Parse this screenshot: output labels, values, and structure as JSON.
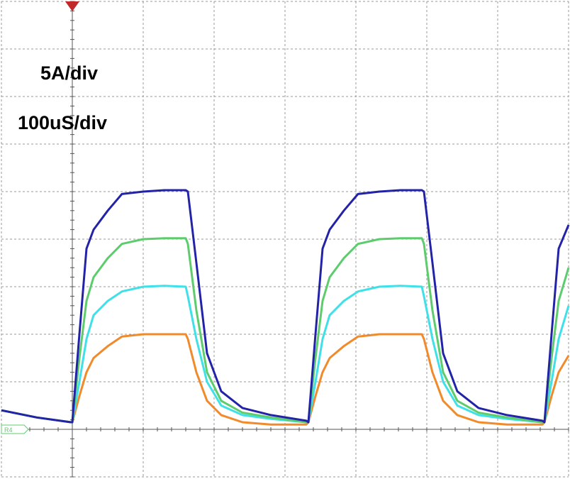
{
  "chart_data": {
    "type": "line",
    "annotations": [
      "5A/div",
      "100uS/div"
    ],
    "ground_label": "R4",
    "xlim": [
      0,
      8
    ],
    "ylim": [
      -1,
      9
    ],
    "grid": true,
    "x": [
      0,
      0.5,
      0.98,
      1.0,
      1.1,
      1.2,
      1.3,
      1.5,
      1.7,
      2.0,
      2.3,
      2.6,
      2.63,
      2.75,
      2.9,
      3.1,
      3.4,
      3.8,
      4.3,
      4.33,
      4.43,
      4.53,
      4.63,
      4.83,
      5.03,
      5.33,
      5.63,
      5.93,
      5.96,
      6.08,
      6.23,
      6.43,
      6.73,
      7.13,
      7.63,
      7.66,
      7.76,
      7.86,
      8.0
    ],
    "series": [
      {
        "color": "#f08a2a",
        "values": [
          0.4,
          0.25,
          0.15,
          0.15,
          0.7,
          1.2,
          1.5,
          1.75,
          1.95,
          2.0,
          2.0,
          2.0,
          1.9,
          1.2,
          0.6,
          0.3,
          0.15,
          0.1,
          0.1,
          0.15,
          0.7,
          1.2,
          1.5,
          1.75,
          1.95,
          2.0,
          2.0,
          2.0,
          1.9,
          1.2,
          0.6,
          0.3,
          0.15,
          0.1,
          0.1,
          0.15,
          0.7,
          1.2,
          1.55
        ]
      },
      {
        "color": "#3fe0e8",
        "values": [
          0.4,
          0.25,
          0.15,
          0.15,
          1.0,
          1.9,
          2.4,
          2.7,
          2.9,
          3.0,
          3.02,
          3.0,
          2.8,
          1.9,
          1.0,
          0.5,
          0.3,
          0.22,
          0.15,
          0.15,
          1.0,
          1.9,
          2.4,
          2.7,
          2.9,
          3.0,
          3.02,
          3.0,
          2.8,
          1.9,
          1.0,
          0.5,
          0.3,
          0.22,
          0.15,
          0.15,
          1.0,
          1.9,
          2.6
        ]
      },
      {
        "color": "#5ccc6c",
        "values": [
          0.4,
          0.25,
          0.15,
          0.15,
          1.5,
          2.7,
          3.2,
          3.6,
          3.9,
          4.0,
          4.02,
          4.02,
          3.9,
          2.5,
          1.2,
          0.6,
          0.35,
          0.25,
          0.15,
          0.15,
          1.5,
          2.7,
          3.2,
          3.6,
          3.9,
          4.0,
          4.02,
          4.02,
          3.9,
          2.5,
          1.2,
          0.6,
          0.35,
          0.25,
          0.15,
          0.15,
          1.5,
          2.7,
          3.4
        ]
      },
      {
        "color": "#2323a8",
        "values": [
          0.4,
          0.25,
          0.15,
          0.15,
          2.0,
          3.8,
          4.2,
          4.6,
          4.95,
          5.0,
          5.03,
          5.03,
          5.0,
          3.5,
          1.6,
          0.8,
          0.45,
          0.3,
          0.18,
          0.15,
          2.0,
          3.8,
          4.2,
          4.6,
          4.95,
          5.0,
          5.03,
          5.03,
          5.0,
          3.5,
          1.6,
          0.8,
          0.45,
          0.3,
          0.18,
          0.15,
          2.0,
          3.8,
          4.3
        ]
      }
    ]
  }
}
